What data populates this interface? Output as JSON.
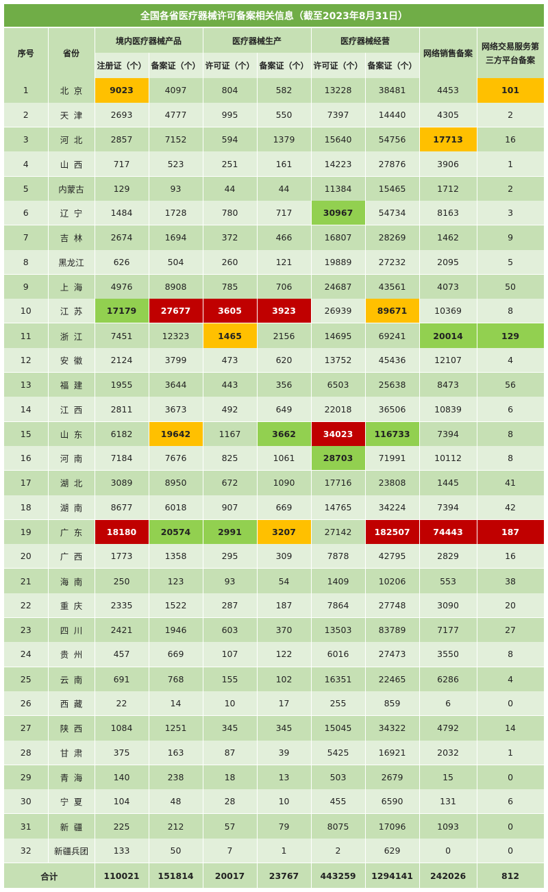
{
  "title": "全国各省医疗器械许可备案相关信息（截至2023年8月31日）",
  "headers": {
    "no": "序号",
    "province": "省份",
    "groups": [
      "境内医疗器械产品",
      "医疗器械生产",
      "医疗器械经营"
    ],
    "online_sales": "网络销售备案",
    "platform": "网络交易服务第三方平台备案",
    "sub": [
      "注册证（个）",
      "备案证（个）",
      "许可证（个）",
      "备案证（个）",
      "许可证（个）",
      "备案证（个）"
    ]
  },
  "highlight_colors": {
    "orange": "#ffc000",
    "green": "#92d050",
    "red": "#c00000"
  },
  "rows": [
    {
      "no": "1",
      "province": "北京",
      "values": [
        "9023",
        "4097",
        "804",
        "582",
        "13228",
        "38481",
        "4453",
        "101"
      ],
      "hl": {
        "0": "orange",
        "7": "orange"
      }
    },
    {
      "no": "2",
      "province": "天津",
      "values": [
        "2693",
        "4777",
        "995",
        "550",
        "7397",
        "14440",
        "4305",
        "2"
      ],
      "hl": {}
    },
    {
      "no": "3",
      "province": "河北",
      "values": [
        "2857",
        "7152",
        "594",
        "1379",
        "15640",
        "54756",
        "17713",
        "16"
      ],
      "hl": {
        "6": "orange"
      }
    },
    {
      "no": "4",
      "province": "山西",
      "values": [
        "717",
        "523",
        "251",
        "161",
        "14223",
        "27876",
        "3906",
        "1"
      ],
      "hl": {}
    },
    {
      "no": "5",
      "province": "内蒙古",
      "values": [
        "129",
        "93",
        "44",
        "44",
        "11384",
        "15465",
        "1712",
        "2"
      ],
      "hl": {}
    },
    {
      "no": "6",
      "province": "辽宁",
      "values": [
        "1484",
        "1728",
        "780",
        "717",
        "30967",
        "54734",
        "8163",
        "3"
      ],
      "hl": {
        "4": "green"
      }
    },
    {
      "no": "7",
      "province": "吉林",
      "values": [
        "2674",
        "1694",
        "372",
        "466",
        "16807",
        "28269",
        "1462",
        "9"
      ],
      "hl": {}
    },
    {
      "no": "8",
      "province": "黑龙江",
      "values": [
        "626",
        "504",
        "260",
        "121",
        "19889",
        "27232",
        "2095",
        "5"
      ],
      "hl": {}
    },
    {
      "no": "9",
      "province": "上海",
      "values": [
        "4976",
        "8908",
        "785",
        "706",
        "24687",
        "43561",
        "4073",
        "50"
      ],
      "hl": {}
    },
    {
      "no": "10",
      "province": "江苏",
      "values": [
        "17179",
        "27677",
        "3605",
        "3923",
        "26939",
        "89671",
        "10369",
        "8"
      ],
      "hl": {
        "0": "green",
        "1": "red",
        "2": "red",
        "3": "red",
        "5": "orange"
      }
    },
    {
      "no": "11",
      "province": "浙江",
      "values": [
        "7451",
        "12323",
        "1465",
        "2156",
        "14695",
        "69241",
        "20014",
        "129"
      ],
      "hl": {
        "2": "orange",
        "6": "green",
        "7": "green"
      }
    },
    {
      "no": "12",
      "province": "安徽",
      "values": [
        "2124",
        "3799",
        "473",
        "620",
        "13752",
        "45436",
        "12107",
        "4"
      ],
      "hl": {}
    },
    {
      "no": "13",
      "province": "福建",
      "values": [
        "1955",
        "3644",
        "443",
        "356",
        "6503",
        "25638",
        "8473",
        "56"
      ],
      "hl": {}
    },
    {
      "no": "14",
      "province": "江西",
      "values": [
        "2811",
        "3673",
        "492",
        "649",
        "22018",
        "36506",
        "10839",
        "6"
      ],
      "hl": {}
    },
    {
      "no": "15",
      "province": "山东",
      "values": [
        "6182",
        "19642",
        "1167",
        "3662",
        "34023",
        "116733",
        "7394",
        "8"
      ],
      "hl": {
        "1": "orange",
        "3": "green",
        "4": "red",
        "5": "green"
      }
    },
    {
      "no": "16",
      "province": "河南",
      "values": [
        "7184",
        "7676",
        "825",
        "1061",
        "28703",
        "71991",
        "10112",
        "8"
      ],
      "hl": {
        "4": "green"
      }
    },
    {
      "no": "17",
      "province": "湖北",
      "values": [
        "3089",
        "8950",
        "672",
        "1090",
        "17716",
        "23808",
        "1445",
        "41"
      ],
      "hl": {}
    },
    {
      "no": "18",
      "province": "湖南",
      "values": [
        "8677",
        "6018",
        "907",
        "669",
        "14765",
        "34224",
        "7394",
        "42"
      ],
      "hl": {}
    },
    {
      "no": "19",
      "province": "广东",
      "values": [
        "18180",
        "20574",
        "2991",
        "3207",
        "27142",
        "182507",
        "74443",
        "187"
      ],
      "hl": {
        "0": "red",
        "1": "green",
        "2": "green",
        "3": "orange",
        "5": "red",
        "6": "red",
        "7": "red"
      }
    },
    {
      "no": "20",
      "province": "广西",
      "values": [
        "1773",
        "1358",
        "295",
        "309",
        "7878",
        "42795",
        "2829",
        "16"
      ],
      "hl": {}
    },
    {
      "no": "21",
      "province": "海南",
      "values": [
        "250",
        "123",
        "93",
        "54",
        "1409",
        "10206",
        "553",
        "38"
      ],
      "hl": {}
    },
    {
      "no": "22",
      "province": "重庆",
      "values": [
        "2335",
        "1522",
        "287",
        "187",
        "7864",
        "27748",
        "3090",
        "20"
      ],
      "hl": {}
    },
    {
      "no": "23",
      "province": "四川",
      "values": [
        "2421",
        "1946",
        "603",
        "370",
        "13503",
        "83789",
        "7177",
        "27"
      ],
      "hl": {}
    },
    {
      "no": "24",
      "province": "贵州",
      "values": [
        "457",
        "669",
        "107",
        "122",
        "6016",
        "27473",
        "3550",
        "8"
      ],
      "hl": {}
    },
    {
      "no": "25",
      "province": "云南",
      "values": [
        "691",
        "768",
        "155",
        "102",
        "16351",
        "22465",
        "6286",
        "4"
      ],
      "hl": {}
    },
    {
      "no": "26",
      "province": "西藏",
      "values": [
        "22",
        "14",
        "10",
        "17",
        "255",
        "859",
        "6",
        "0"
      ],
      "hl": {}
    },
    {
      "no": "27",
      "province": "陕西",
      "values": [
        "1084",
        "1251",
        "345",
        "345",
        "15045",
        "34322",
        "4792",
        "14"
      ],
      "hl": {}
    },
    {
      "no": "28",
      "province": "甘肃",
      "values": [
        "375",
        "163",
        "87",
        "39",
        "5425",
        "16921",
        "2032",
        "1"
      ],
      "hl": {}
    },
    {
      "no": "29",
      "province": "青海",
      "values": [
        "140",
        "238",
        "18",
        "13",
        "503",
        "2679",
        "15",
        "0"
      ],
      "hl": {}
    },
    {
      "no": "30",
      "province": "宁夏",
      "values": [
        "104",
        "48",
        "28",
        "10",
        "455",
        "6590",
        "131",
        "6"
      ],
      "hl": {}
    },
    {
      "no": "31",
      "province": "新疆",
      "values": [
        "225",
        "212",
        "57",
        "79",
        "8075",
        "17096",
        "1093",
        "0"
      ],
      "hl": {}
    },
    {
      "no": "32",
      "province": "新疆兵团",
      "values": [
        "133",
        "50",
        "7",
        "1",
        "2",
        "629",
        "0",
        "0"
      ],
      "hl": {}
    }
  ],
  "total": {
    "label": "合计",
    "values": [
      "110021",
      "151814",
      "20017",
      "23767",
      "443259",
      "1294141",
      "242026",
      "812"
    ]
  }
}
